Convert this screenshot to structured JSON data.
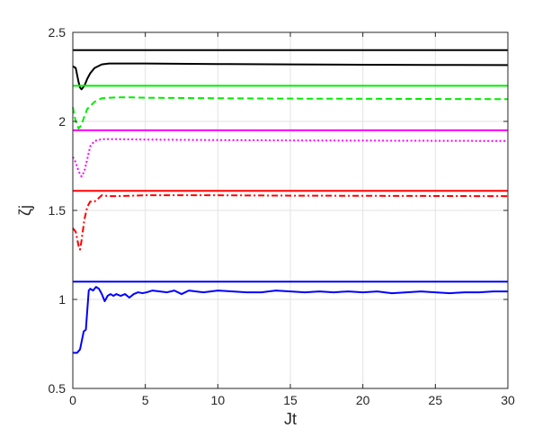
{
  "chart_data": {
    "type": "line",
    "xlabel": "Jt",
    "ylabel": "ζj",
    "xlim": [
      0,
      30
    ],
    "ylim": [
      0.5,
      2.5
    ],
    "xticks": [
      "0",
      "5",
      "10",
      "15",
      "20",
      "25",
      "30"
    ],
    "yticks": [
      "0.5",
      "1",
      "1.5",
      "2",
      "2.5"
    ],
    "grid": true,
    "series": [
      {
        "color": "#000000",
        "style": "solid",
        "role": "reference",
        "x": [
          0,
          30
        ],
        "y": [
          2.4,
          2.4
        ]
      },
      {
        "color": "#000000",
        "style": "solid",
        "role": "dynamics",
        "x": [
          0,
          0.2,
          0.4,
          0.5,
          0.6,
          0.8,
          1.0,
          1.2,
          1.5,
          2.0,
          2.5,
          3,
          4,
          5,
          10,
          15,
          20,
          25,
          30
        ],
        "y": [
          2.31,
          2.3,
          2.22,
          2.19,
          2.18,
          2.2,
          2.24,
          2.27,
          2.3,
          2.32,
          2.325,
          2.325,
          2.325,
          2.325,
          2.322,
          2.32,
          2.318,
          2.317,
          2.316
        ]
      },
      {
        "color": "#00ee00",
        "style": "solid",
        "role": "reference",
        "x": [
          0,
          30
        ],
        "y": [
          2.2,
          2.2
        ]
      },
      {
        "color": "#00ee00",
        "style": "dashed",
        "role": "dynamics",
        "x": [
          0,
          0.2,
          0.4,
          0.6,
          0.8,
          1.0,
          1.5,
          2,
          3,
          4,
          5,
          10,
          15,
          20,
          25,
          30
        ],
        "y": [
          2.08,
          2.0,
          1.96,
          1.98,
          2.03,
          2.07,
          2.11,
          2.13,
          2.135,
          2.135,
          2.133,
          2.13,
          2.128,
          2.127,
          2.126,
          2.125
        ]
      },
      {
        "color": "#ff00ff",
        "style": "solid",
        "role": "reference",
        "x": [
          0,
          30
        ],
        "y": [
          1.95,
          1.95
        ]
      },
      {
        "color": "#ff00ff",
        "style": "dotted",
        "role": "dynamics",
        "x": [
          0,
          0.2,
          0.4,
          0.6,
          0.8,
          1.0,
          1.2,
          1.5,
          2,
          3,
          5,
          10,
          15,
          20,
          25,
          30
        ],
        "y": [
          1.8,
          1.77,
          1.72,
          1.69,
          1.72,
          1.79,
          1.86,
          1.89,
          1.9,
          1.9,
          1.898,
          1.895,
          1.893,
          1.892,
          1.891,
          1.89
        ]
      },
      {
        "color": "#ff0000",
        "style": "solid",
        "role": "reference",
        "x": [
          0,
          30
        ],
        "y": [
          1.61,
          1.61
        ]
      },
      {
        "color": "#ff0000",
        "style": "dashdot",
        "role": "dynamics",
        "x": [
          0,
          0.2,
          0.4,
          0.5,
          0.6,
          0.8,
          1.0,
          1.2,
          1.5,
          1.8,
          2.0,
          2.5,
          3,
          5,
          10,
          15,
          20,
          25,
          30
        ],
        "y": [
          1.4,
          1.38,
          1.3,
          1.28,
          1.33,
          1.45,
          1.52,
          1.55,
          1.55,
          1.57,
          1.585,
          1.58,
          1.58,
          1.585,
          1.585,
          1.583,
          1.582,
          1.581,
          1.58
        ]
      },
      {
        "color": "#0000ff",
        "style": "solid",
        "role": "reference",
        "x": [
          0,
          30
        ],
        "y": [
          1.1,
          1.1
        ]
      },
      {
        "color": "#0000ff",
        "style": "solid",
        "role": "dynamics",
        "x": [
          0,
          0.3,
          0.5,
          0.6,
          0.75,
          0.9,
          1.0,
          1.1,
          1.2,
          1.4,
          1.6,
          1.8,
          2.0,
          2.2,
          2.4,
          2.6,
          2.8,
          3.0,
          3.3,
          3.6,
          3.9,
          4.2,
          4.5,
          4.8,
          5.1,
          5.5,
          6.0,
          6.5,
          7.0,
          7.5,
          8.0,
          8.5,
          9.0,
          10,
          11,
          12,
          13,
          14,
          15,
          16,
          17,
          18,
          19,
          20,
          21,
          22,
          23,
          24,
          25,
          26,
          27,
          28,
          29,
          30
        ],
        "y": [
          0.7,
          0.7,
          0.72,
          0.76,
          0.82,
          0.83,
          0.94,
          1.05,
          1.06,
          1.05,
          1.07,
          1.06,
          1.03,
          0.99,
          1.02,
          1.03,
          1.02,
          1.03,
          1.02,
          1.03,
          1.01,
          1.03,
          1.04,
          1.035,
          1.04,
          1.05,
          1.045,
          1.04,
          1.05,
          1.03,
          1.05,
          1.045,
          1.04,
          1.05,
          1.045,
          1.04,
          1.04,
          1.05,
          1.045,
          1.04,
          1.045,
          1.04,
          1.045,
          1.04,
          1.045,
          1.035,
          1.04,
          1.045,
          1.04,
          1.035,
          1.04,
          1.04,
          1.045,
          1.045
        ]
      }
    ]
  }
}
